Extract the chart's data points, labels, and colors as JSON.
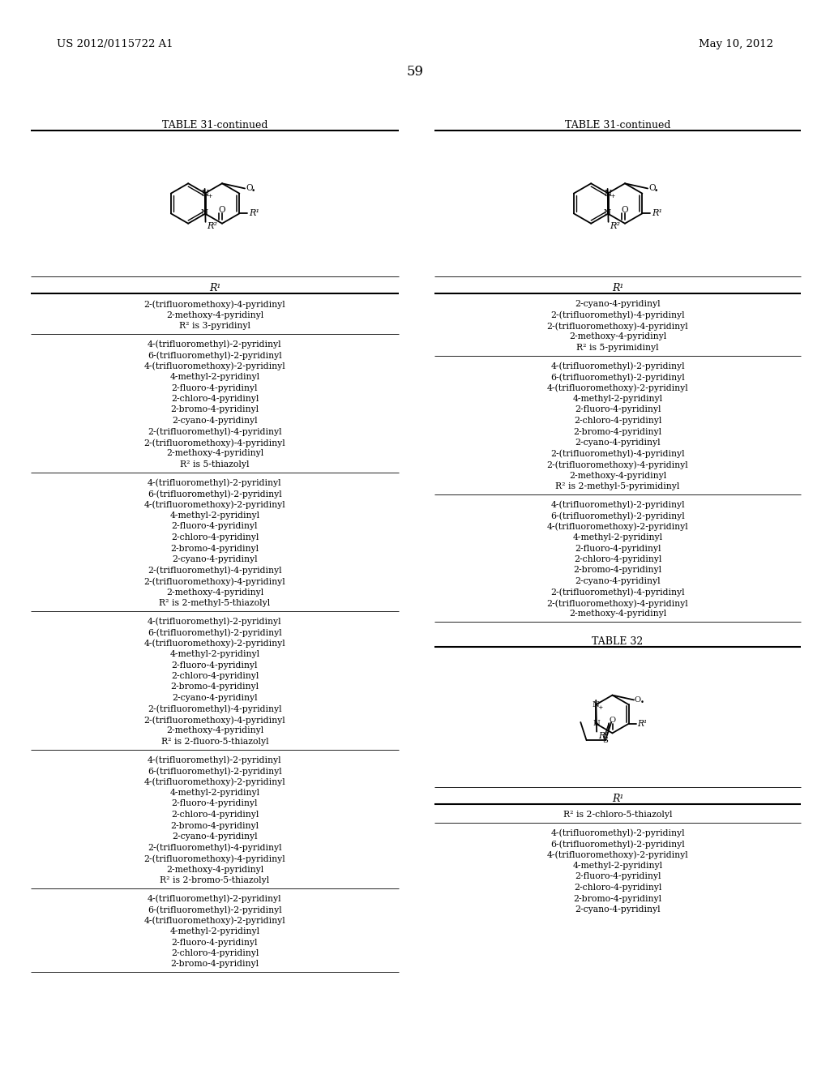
{
  "page_header_left": "US 2012/0115722 A1",
  "page_header_right": "May 10, 2012",
  "page_number": "59",
  "background_color": "#ffffff",
  "left_col": {
    "table_title": "TABLE 31-continued",
    "sections": [
      {
        "lines": [
          "2-(trifluoromethoxy)-4-pyridinyl",
          "2-methoxy-4-pyridinyl",
          "R² is 3-pyridinyl"
        ]
      },
      {
        "lines": [
          "4-(trifluoromethyl)-2-pyridinyl",
          "6-(trifluoromethyl)-2-pyridinyl",
          "4-(trifluoromethoxy)-2-pyridinyl",
          "4-methyl-2-pyridinyl",
          "2-fluoro-4-pyridinyl",
          "2-chloro-4-pyridinyl",
          "2-bromo-4-pyridinyl",
          "2-cyano-4-pyridinyl",
          "2-(trifluoromethyl)-4-pyridinyl",
          "2-(trifluoromethoxy)-4-pyridinyl",
          "2-methoxy-4-pyridinyl",
          "R² is 5-thiazolyl"
        ]
      },
      {
        "lines": [
          "4-(trifluoromethyl)-2-pyridinyl",
          "6-(trifluoromethyl)-2-pyridinyl",
          "4-(trifluoromethoxy)-2-pyridinyl",
          "4-methyl-2-pyridinyl",
          "2-fluoro-4-pyridinyl",
          "2-chloro-4-pyridinyl",
          "2-bromo-4-pyridinyl",
          "2-cyano-4-pyridinyl",
          "2-(trifluoromethyl)-4-pyridinyl",
          "2-(trifluoromethoxy)-4-pyridinyl",
          "2-methoxy-4-pyridinyl",
          "R² is 2-methyl-5-thiazolyl"
        ]
      },
      {
        "lines": [
          "4-(trifluoromethyl)-2-pyridinyl",
          "6-(trifluoromethyl)-2-pyridinyl",
          "4-(trifluoromethoxy)-2-pyridinyl",
          "4-methyl-2-pyridinyl",
          "2-fluoro-4-pyridinyl",
          "2-chloro-4-pyridinyl",
          "2-bromo-4-pyridinyl",
          "2-cyano-4-pyridinyl",
          "2-(trifluoromethyl)-4-pyridinyl",
          "2-(trifluoromethoxy)-4-pyridinyl",
          "2-methoxy-4-pyridinyl",
          "R² is 2-fluoro-5-thiazolyl"
        ]
      },
      {
        "lines": [
          "4-(trifluoromethyl)-2-pyridinyl",
          "6-(trifluoromethyl)-2-pyridinyl",
          "4-(trifluoromethoxy)-2-pyridinyl",
          "4-methyl-2-pyridinyl",
          "2-fluoro-4-pyridinyl",
          "2-chloro-4-pyridinyl",
          "2-bromo-4-pyridinyl",
          "2-cyano-4-pyridinyl",
          "2-(trifluoromethyl)-4-pyridinyl",
          "2-(trifluoromethoxy)-4-pyridinyl",
          "2-methoxy-4-pyridinyl",
          "R² is 2-bromo-5-thiazolyl"
        ]
      },
      {
        "lines": [
          "4-(trifluoromethyl)-2-pyridinyl",
          "6-(trifluoromethyl)-2-pyridinyl",
          "4-(trifluoromethoxy)-2-pyridinyl",
          "4-methyl-2-pyridinyl",
          "2-fluoro-4-pyridinyl",
          "2-chloro-4-pyridinyl",
          "2-bromo-4-pyridinyl"
        ]
      }
    ]
  },
  "right_col": {
    "table_title": "TABLE 31-continued",
    "sections": [
      {
        "lines": [
          "2-cyano-4-pyridinyl",
          "2-(trifluoromethyl)-4-pyridinyl",
          "2-(trifluoromethoxy)-4-pyridinyl",
          "2-methoxy-4-pyridinyl",
          "R² is 5-pyrimidinyl"
        ]
      },
      {
        "lines": [
          "4-(trifluoromethyl)-2-pyridinyl",
          "6-(trifluoromethyl)-2-pyridinyl",
          "4-(trifluoromethoxy)-2-pyridinyl",
          "4-methyl-2-pyridinyl",
          "2-fluoro-4-pyridinyl",
          "2-chloro-4-pyridinyl",
          "2-bromo-4-pyridinyl",
          "2-cyano-4-pyridinyl",
          "2-(trifluoromethyl)-4-pyridinyl",
          "2-(trifluoromethoxy)-4-pyridinyl",
          "2-methoxy-4-pyridinyl",
          "R² is 2-methyl-5-pyrimidinyl"
        ]
      },
      {
        "lines": [
          "4-(trifluoromethyl)-2-pyridinyl",
          "6-(trifluoromethyl)-2-pyridinyl",
          "4-(trifluoromethoxy)-2-pyridinyl",
          "4-methyl-2-pyridinyl",
          "2-fluoro-4-pyridinyl",
          "2-chloro-4-pyridinyl",
          "2-bromo-4-pyridinyl",
          "2-cyano-4-pyridinyl",
          "2-(trifluoromethyl)-4-pyridinyl",
          "2-(trifluoromethoxy)-4-pyridinyl",
          "2-methoxy-4-pyridinyl"
        ]
      }
    ],
    "table32": {
      "title": "TABLE 32",
      "r2_line": "R² is 2-chloro-5-thiazolyl",
      "lines": [
        "4-(trifluoromethyl)-2-pyridinyl",
        "6-(trifluoromethyl)-2-pyridinyl",
        "4-(trifluoromethoxy)-2-pyridinyl",
        "4-methyl-2-pyridinyl",
        "2-fluoro-4-pyridinyl",
        "2-chloro-4-pyridinyl",
        "2-bromo-4-pyridinyl",
        "2-cyano-4-pyridinyl"
      ]
    }
  }
}
